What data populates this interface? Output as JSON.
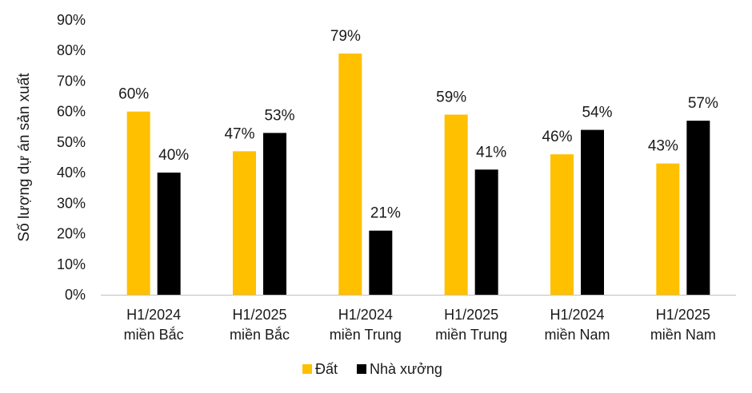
{
  "chart_data": {
    "type": "bar",
    "ylabel": "Số lượng dự án sản xuất",
    "categories": [
      [
        "H1/2024",
        "miền Bắc"
      ],
      [
        "H1/2025",
        "miền Bắc"
      ],
      [
        "H1/2024",
        "miền Trung"
      ],
      [
        "H1/2025",
        "miền Trung"
      ],
      [
        "H1/2024",
        "miền Nam"
      ],
      [
        "H1/2025",
        "miền Nam"
      ]
    ],
    "series": [
      {
        "name": "Đất",
        "color": "#FFC000",
        "values": [
          60,
          47,
          79,
          59,
          46,
          43
        ]
      },
      {
        "name": "Nhà xưởng",
        "color": "#000000",
        "values": [
          40,
          53,
          21,
          41,
          54,
          57
        ]
      }
    ],
    "ylim": [
      0,
      90
    ],
    "yticks": [
      "0%",
      "10%",
      "20%",
      "30%",
      "40%",
      "50%",
      "60%",
      "70%",
      "80%",
      "90%"
    ],
    "data_labels": [
      [
        "60%",
        "47%",
        "79%",
        "59%",
        "46%",
        "43%"
      ],
      [
        "40%",
        "53%",
        "21%",
        "41%",
        "54%",
        "57%"
      ]
    ],
    "grid": false,
    "legend_position": "bottom"
  }
}
